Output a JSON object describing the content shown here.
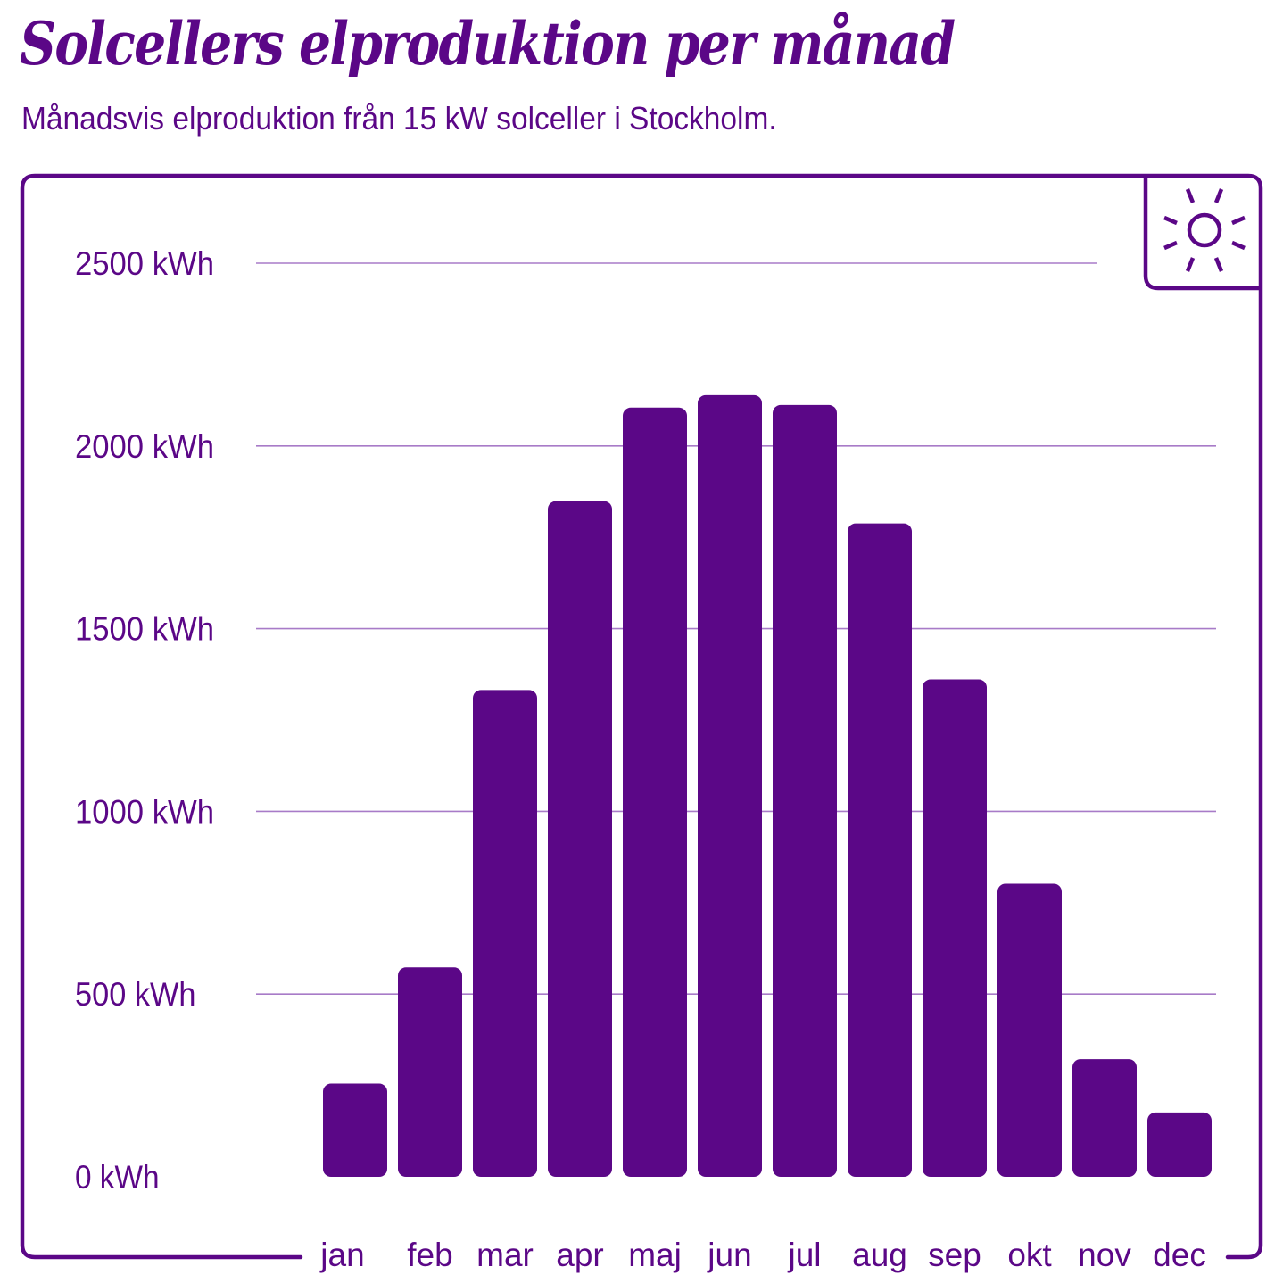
{
  "header": {
    "title": "Solcellers elproduktion per månad",
    "subtitle": "Månadsvis elproduktion från 15 kW solceller i Stockholm."
  },
  "icon": {
    "name": "sun-icon"
  },
  "colors": {
    "primary": "#5b0787",
    "gridline": "#a87bc8",
    "background": "#ffffff"
  },
  "chart_data": {
    "type": "bar",
    "title": "Solcellers elproduktion per månad",
    "subtitle": "Månadsvis elproduktion från 15 kW solceller i Stockholm.",
    "xlabel": "",
    "ylabel": "",
    "categories": [
      "jan",
      "feb",
      "mar",
      "apr",
      "maj",
      "jun",
      "jul",
      "aug",
      "sep",
      "okt",
      "nov",
      "dec"
    ],
    "values": [
      255,
      573,
      1332,
      1849,
      2105,
      2139,
      2112,
      1788,
      1361,
      802,
      322,
      176
    ],
    "unit": "kWh",
    "yticks": [
      0,
      500,
      1000,
      1500,
      2000,
      2500
    ],
    "ytick_labels": [
      "0 kWh",
      "500 kWh",
      "1000 kWh",
      "1500 kWh",
      "2000 kWh",
      "2500 kWh"
    ],
    "ylim": [
      0,
      2500
    ],
    "grid": true,
    "legend": null
  }
}
